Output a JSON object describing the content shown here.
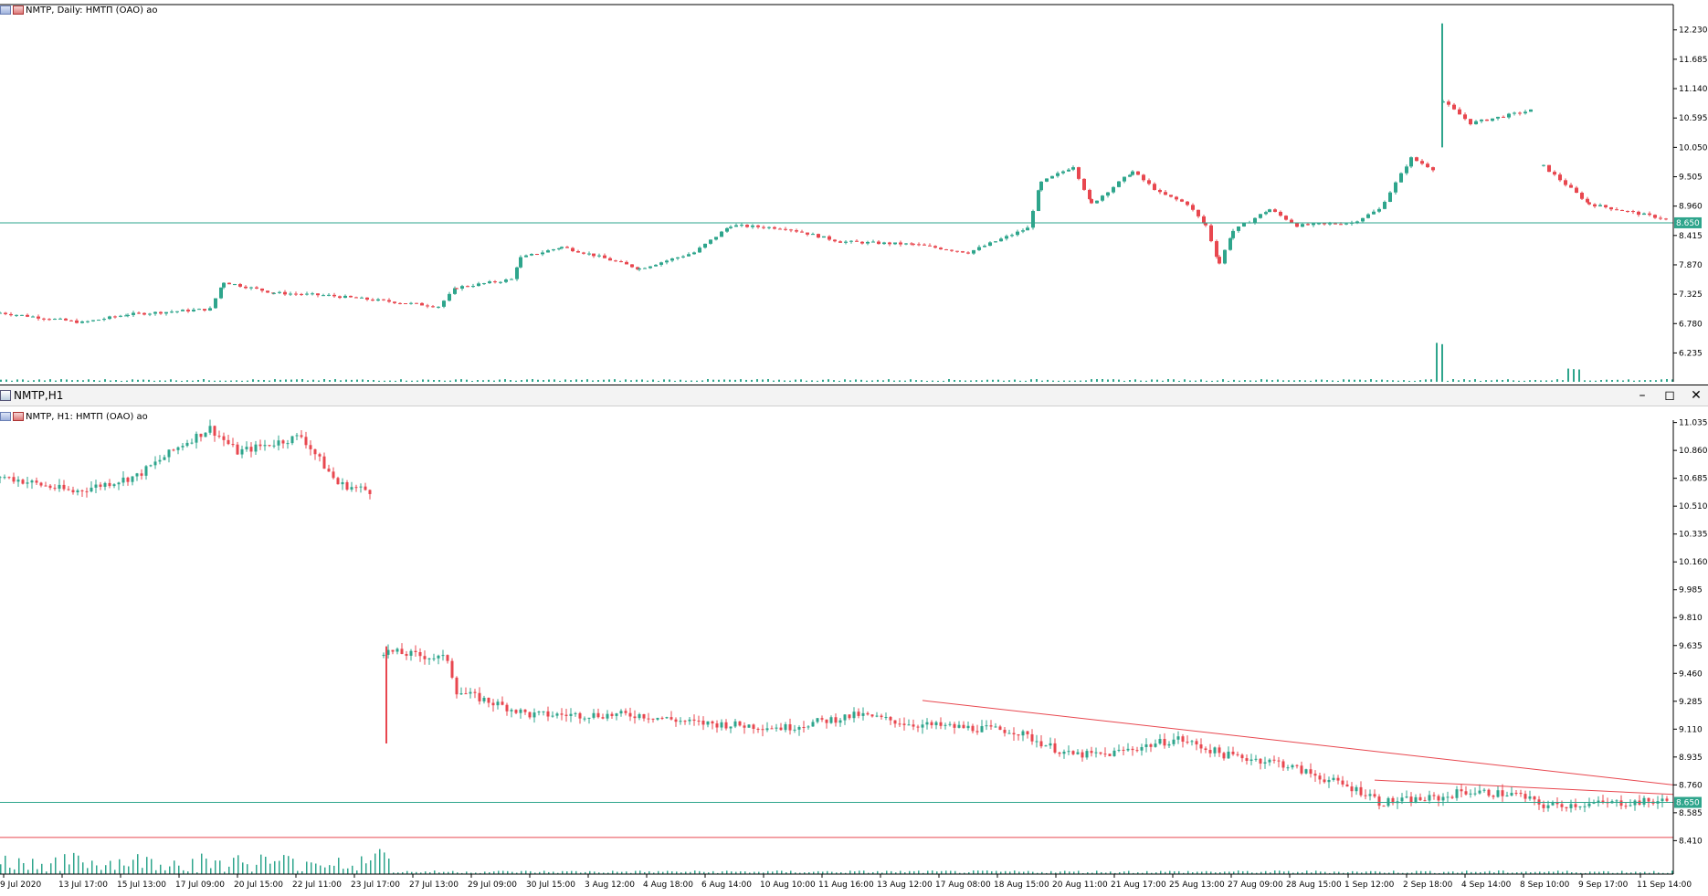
{
  "daily": {
    "caption": "NMTP, Daily:  НМТП (ОАО) ао",
    "price_axis": [
      "12.230",
      "11.685",
      "11.140",
      "10.595",
      "10.050",
      "9.505",
      "8.960",
      "8.415",
      "7.870",
      "7.325",
      "6.780",
      "6.235"
    ],
    "ylim": [
      5.7,
      12.7
    ],
    "current_price": "8.650",
    "current_value": 8.65,
    "colors": {
      "bull": "#2ea58c",
      "bear": "#e8474f",
      "level": "#2ea58c",
      "background": "#ffffff"
    }
  },
  "h1": {
    "window_title": "NMTP,H1",
    "caption": "NMTP, H1:  НМТП (ОАО) ао",
    "price_axis": [
      "11.035",
      "10.860",
      "10.685",
      "10.510",
      "10.335",
      "10.160",
      "9.985",
      "9.810",
      "9.635",
      "9.460",
      "9.285",
      "9.110",
      "8.935",
      "8.760",
      "8.585",
      "8.410"
    ],
    "ylim": [
      8.2,
      11.05
    ],
    "current_price": "8.650",
    "current_value": 8.65,
    "time_axis": [
      "9 Jul 2020",
      "13 Jul 17:00",
      "15 Jul 13:00",
      "17 Jul 09:00",
      "20 Jul 15:00",
      "22 Jul 11:00",
      "23 Jul 17:00",
      "27 Jul 13:00",
      "29 Jul 09:00",
      "30 Jul 15:00",
      "3 Aug 12:00",
      "4 Aug 18:00",
      "6 Aug 14:00",
      "10 Aug 10:00",
      "11 Aug 16:00",
      "13 Aug 12:00",
      "17 Aug 08:00",
      "18 Aug 15:00",
      "20 Aug 11:00",
      "21 Aug 17:00",
      "25 Aug 13:00",
      "27 Aug 09:00",
      "28 Aug 15:00",
      "1 Sep 12:00",
      "2 Sep 18:00",
      "4 Sep 14:00",
      "8 Sep 10:00",
      "9 Sep 17:00",
      "11 Sep 14:00"
    ],
    "trend_upper": {
      "from": 9.29,
      "to": 8.76
    },
    "trend_lower": {
      "from": 8.79,
      "to": 8.7
    },
    "support_level": 8.43,
    "colors": {
      "bull": "#2ea58c",
      "bear": "#e8474f",
      "trend": "#e8474f",
      "level": "#2ea58c"
    }
  }
}
